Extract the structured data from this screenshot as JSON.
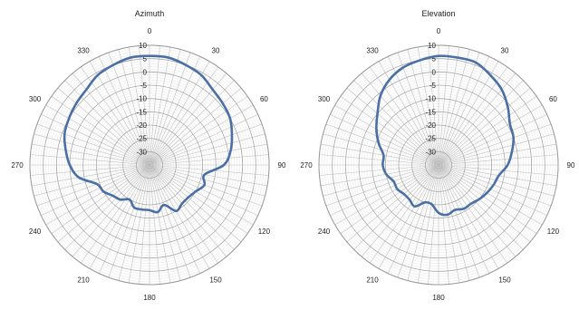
{
  "chart_data": [
    {
      "type": "polar-line",
      "title": "Azimuth",
      "angle_labels": [
        "0",
        "30",
        "60",
        "90",
        "120",
        "150",
        "180",
        "210",
        "240",
        "270",
        "300",
        "330"
      ],
      "radial_ticks": [
        -30,
        -25,
        -20,
        -15,
        -10,
        -5,
        0,
        5,
        10
      ],
      "rlim": [
        -35,
        10
      ],
      "series": [
        {
          "color": "#4a6fa5",
          "angles": [
            0,
            10,
            20,
            30,
            40,
            50,
            60,
            70,
            80,
            90,
            100,
            110,
            120,
            130,
            140,
            150,
            160,
            170,
            180,
            190,
            200,
            210,
            220,
            230,
            240,
            250,
            260,
            270,
            280,
            290,
            300,
            310,
            320,
            330,
            340,
            350
          ],
          "values": [
            6,
            6,
            5,
            4,
            2,
            1,
            0,
            -2,
            -4,
            -7,
            -14,
            -13,
            -15,
            -16,
            -16,
            -15,
            -19,
            -17,
            -18,
            -18,
            -18,
            -20,
            -18,
            -17,
            -15,
            -14,
            -8,
            -5,
            -3,
            -1,
            0,
            1,
            2,
            4,
            5,
            6
          ]
        }
      ],
      "grid": true
    },
    {
      "type": "polar-line",
      "title": "Elevation",
      "angle_labels": [
        "0",
        "30",
        "60",
        "90",
        "120",
        "150",
        "180",
        "210",
        "240",
        "270",
        "300",
        "330"
      ],
      "radial_ticks": [
        -30,
        -25,
        -20,
        -15,
        -10,
        -5,
        0,
        5,
        10
      ],
      "rlim": [
        -35,
        10
      ],
      "series": [
        {
          "color": "#4a6fa5",
          "angles": [
            0,
            10,
            20,
            30,
            40,
            50,
            60,
            70,
            80,
            90,
            100,
            110,
            120,
            130,
            140,
            150,
            160,
            170,
            180,
            190,
            200,
            210,
            220,
            230,
            240,
            250,
            260,
            270,
            280,
            290,
            300,
            310,
            320,
            330,
            340,
            350
          ],
          "values": [
            6,
            6,
            6,
            4,
            2,
            -1,
            -4,
            -5,
            -7,
            -9,
            -12,
            -13,
            -14,
            -15,
            -16,
            -16,
            -17,
            -16,
            -17,
            -20,
            -20,
            -17,
            -18,
            -18,
            -17,
            -17,
            -15,
            -14,
            -14,
            -11,
            -8,
            -5,
            -1,
            2,
            4,
            5
          ]
        }
      ],
      "grid": true
    }
  ]
}
